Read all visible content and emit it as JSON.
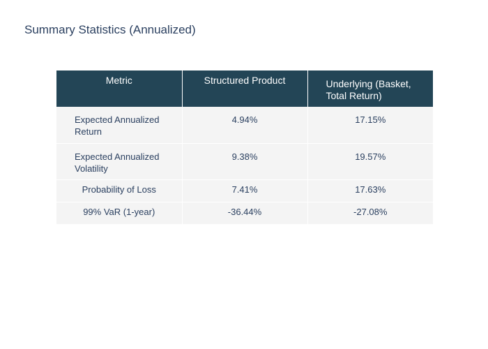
{
  "chart_data": {
    "type": "table",
    "title": "Summary Statistics (Annualized)",
    "columns": [
      "Metric",
      "Structured Product",
      "Underlying (Basket, Total Return)"
    ],
    "rows": [
      [
        "Expected Annualized Return",
        "4.94%",
        "17.15%"
      ],
      [
        "Expected Annualized Volatility",
        "9.38%",
        "19.57%"
      ],
      [
        "Probability of Loss",
        "7.41%",
        "17.63%"
      ],
      [
        "99% VaR (1-year)",
        "-36.44%",
        "-27.08%"
      ]
    ]
  },
  "colors": {
    "header_bg": "#234556",
    "cell_bg": "#f4f4f4",
    "text": "#2a3f5f"
  }
}
